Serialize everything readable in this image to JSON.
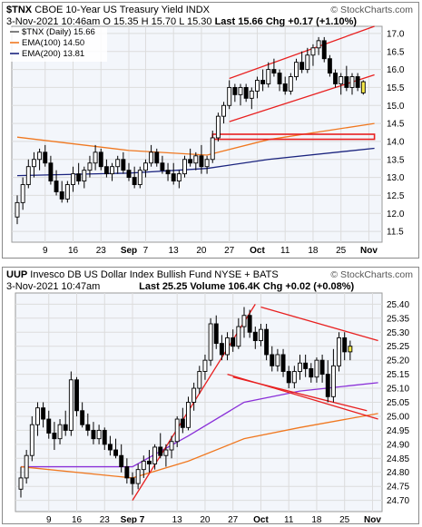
{
  "chart_data": [
    {
      "type": "candlestick",
      "symbol": "$TNX",
      "name": "CBOE 10-Year US Treasury Yield",
      "exchange": "INDX",
      "date": "3-Nov-2021 10:46am",
      "open": "O 15.35",
      "high": "H 15.70",
      "low": "L 15.30",
      "last": "Last 15.66",
      "change": "Chg +0.17 (+1.10%)",
      "legend": [
        {
          "label": "$TNX (Daily) 15.66",
          "color": "#000000"
        },
        {
          "label": "EMA(100) 14.50",
          "color": "#f07820"
        },
        {
          "label": "EMA(200) 13.81",
          "color": "#1a237e"
        }
      ],
      "ylim": [
        11.2,
        17.2
      ],
      "yticks": [
        "11.5",
        "12.0",
        "12.5",
        "13.0",
        "13.5",
        "14.0",
        "14.5",
        "15.0",
        "15.5",
        "16.0",
        "16.5",
        "17.0"
      ],
      "xticks": [
        {
          "label": "9",
          "i": 5
        },
        {
          "label": "16",
          "i": 10
        },
        {
          "label": "23",
          "i": 15
        },
        {
          "label": "Sep",
          "i": 20
        },
        {
          "label": "7",
          "i": 23
        },
        {
          "label": "13",
          "i": 28
        },
        {
          "label": "20",
          "i": 33
        },
        {
          "label": "27",
          "i": 38
        },
        {
          "label": "Oct",
          "i": 43
        },
        {
          "label": "11",
          "i": 48
        },
        {
          "label": "18",
          "i": 53
        },
        {
          "label": "25",
          "i": 58
        },
        {
          "label": "Nov",
          "i": 63
        }
      ],
      "bars": [
        [
          11.9,
          12.5,
          11.7,
          12.3
        ],
        [
          12.3,
          13.0,
          12.1,
          12.8
        ],
        [
          12.8,
          13.5,
          12.7,
          13.3
        ],
        [
          13.3,
          13.7,
          13.0,
          13.5
        ],
        [
          13.5,
          13.8,
          13.2,
          13.7
        ],
        [
          13.7,
          13.9,
          13.3,
          13.4
        ],
        [
          13.4,
          13.6,
          12.8,
          12.9
        ],
        [
          12.9,
          13.2,
          12.5,
          12.6
        ],
        [
          12.6,
          12.9,
          12.3,
          12.4
        ],
        [
          12.4,
          12.9,
          12.3,
          12.8
        ],
        [
          12.8,
          13.3,
          12.6,
          13.1
        ],
        [
          13.1,
          13.4,
          12.8,
          12.9
        ],
        [
          12.9,
          13.3,
          12.7,
          13.2
        ],
        [
          13.2,
          13.6,
          13.0,
          13.4
        ],
        [
          13.4,
          13.9,
          13.2,
          13.7
        ],
        [
          13.7,
          13.8,
          13.2,
          13.3
        ],
        [
          13.3,
          13.5,
          13.0,
          13.1
        ],
        [
          13.1,
          13.4,
          12.9,
          13.3
        ],
        [
          13.3,
          13.6,
          13.1,
          13.5
        ],
        [
          13.5,
          13.7,
          13.1,
          13.2
        ],
        [
          13.2,
          13.4,
          12.9,
          13.0
        ],
        [
          13.0,
          13.3,
          12.7,
          12.8
        ],
        [
          12.8,
          13.3,
          12.7,
          13.2
        ],
        [
          13.2,
          13.5,
          13.0,
          13.4
        ],
        [
          13.4,
          13.9,
          13.3,
          13.7
        ],
        [
          13.7,
          13.8,
          13.3,
          13.4
        ],
        [
          13.4,
          13.6,
          13.1,
          13.2
        ],
        [
          13.2,
          13.4,
          12.9,
          13.1
        ],
        [
          13.1,
          13.4,
          12.8,
          12.9
        ],
        [
          12.9,
          13.2,
          12.7,
          13.1
        ],
        [
          13.1,
          13.6,
          13.0,
          13.5
        ],
        [
          13.5,
          13.8,
          13.3,
          13.4
        ],
        [
          13.4,
          13.7,
          13.2,
          13.6
        ],
        [
          13.6,
          13.9,
          13.1,
          13.3
        ],
        [
          13.3,
          13.6,
          13.1,
          13.5
        ],
        [
          13.5,
          14.3,
          13.4,
          14.1
        ],
        [
          14.1,
          14.8,
          14.0,
          14.7
        ],
        [
          14.7,
          15.1,
          14.5,
          15.0
        ],
        [
          15.0,
          15.7,
          14.9,
          15.5
        ],
        [
          15.5,
          15.6,
          15.1,
          15.3
        ],
        [
          15.3,
          15.6,
          15.0,
          15.5
        ],
        [
          15.5,
          15.6,
          15.1,
          15.2
        ],
        [
          15.2,
          15.5,
          14.9,
          15.4
        ],
        [
          15.4,
          15.8,
          15.2,
          15.7
        ],
        [
          15.7,
          16.0,
          15.4,
          15.6
        ],
        [
          15.6,
          16.2,
          15.5,
          16.0
        ],
        [
          16.0,
          16.3,
          15.8,
          15.9
        ],
        [
          15.9,
          16.0,
          15.4,
          15.6
        ],
        [
          15.6,
          15.8,
          15.3,
          15.4
        ],
        [
          15.4,
          15.9,
          15.3,
          15.8
        ],
        [
          15.8,
          16.3,
          15.7,
          16.2
        ],
        [
          16.2,
          16.5,
          15.9,
          16.0
        ],
        [
          16.0,
          16.6,
          15.9,
          16.4
        ],
        [
          16.4,
          16.7,
          16.1,
          16.6
        ],
        [
          16.6,
          16.9,
          16.4,
          16.8
        ],
        [
          16.8,
          16.9,
          16.2,
          16.3
        ],
        [
          16.3,
          16.4,
          15.8,
          15.9
        ],
        [
          15.9,
          16.0,
          15.5,
          15.6
        ],
        [
          15.6,
          15.9,
          15.3,
          15.8
        ],
        [
          15.8,
          16.1,
          15.4,
          15.5
        ],
        [
          15.5,
          15.9,
          15.3,
          15.8
        ],
        [
          15.8,
          15.9,
          15.4,
          15.5
        ],
        [
          15.35,
          15.7,
          15.3,
          15.66
        ]
      ],
      "ema100": [
        [
          0,
          14.12
        ],
        [
          20,
          13.75
        ],
        [
          34,
          13.62
        ],
        [
          45,
          14.05
        ],
        [
          64,
          14.5
        ]
      ],
      "ema200": [
        [
          0,
          13.05
        ],
        [
          20,
          13.12
        ],
        [
          34,
          13.25
        ],
        [
          45,
          13.5
        ],
        [
          64,
          13.81
        ]
      ],
      "annotations": {
        "channel": [
          [
            [
              38,
              15.75
            ],
            [
              64,
              17.2
            ]
          ],
          [
            [
              38,
              14.55
            ],
            [
              64,
              15.85
            ]
          ]
        ],
        "box": [
          [
            35,
            14.2
          ],
          [
            64,
            14.06
          ]
        ]
      }
    },
    {
      "type": "candlestick",
      "symbol": "UUP",
      "name": "Invesco DB US Dollar Index Bullish Fund",
      "exchange": "NYSE + BATS",
      "date": "3-Nov-2021 10:47am",
      "last": "Last 25.25",
      "volume": "Volume 106.4K",
      "change": "Chg +0.02 (+0.08%)",
      "ylim": [
        24.66,
        25.44
      ],
      "yticks": [
        "24.70",
        "24.75",
        "24.80",
        "24.85",
        "24.90",
        "24.95",
        "25.00",
        "25.05",
        "25.10",
        "25.15",
        "25.20",
        "25.25",
        "25.30",
        "25.35",
        "25.40"
      ],
      "xticks": [
        {
          "label": "9",
          "i": 5
        },
        {
          "label": "16",
          "i": 10
        },
        {
          "label": "23",
          "i": 15
        },
        {
          "label": "Sep 7",
          "i": 20
        },
        {
          "label": "13",
          "i": 28
        },
        {
          "label": "20",
          "i": 33
        },
        {
          "label": "27",
          "i": 38
        },
        {
          "label": "Oct",
          "i": 43
        },
        {
          "label": "11",
          "i": 48
        },
        {
          "label": "18",
          "i": 53
        },
        {
          "label": "25",
          "i": 58
        },
        {
          "label": "Nov",
          "i": 63
        }
      ],
      "bars": [
        [
          24.74,
          24.82,
          24.71,
          24.78
        ],
        [
          24.78,
          24.88,
          24.76,
          24.86
        ],
        [
          24.86,
          25.0,
          24.84,
          24.97
        ],
        [
          24.97,
          25.05,
          24.93,
          25.03
        ],
        [
          25.03,
          25.05,
          24.96,
          24.99
        ],
        [
          24.99,
          25.02,
          24.92,
          24.94
        ],
        [
          24.94,
          24.98,
          24.88,
          24.92
        ],
        [
          24.92,
          24.99,
          24.9,
          24.97
        ],
        [
          24.97,
          25.02,
          24.93,
          24.95
        ],
        [
          24.95,
          25.16,
          24.93,
          25.13
        ],
        [
          25.13,
          25.14,
          25.0,
          25.02
        ],
        [
          25.02,
          25.05,
          24.96,
          24.97
        ],
        [
          24.97,
          25.01,
          24.93,
          24.95
        ],
        [
          24.95,
          24.98,
          24.9,
          24.92
        ],
        [
          24.92,
          24.97,
          24.9,
          24.95
        ],
        [
          24.95,
          24.96,
          24.88,
          24.9
        ],
        [
          24.9,
          24.93,
          24.86,
          24.88
        ],
        [
          24.88,
          24.92,
          24.85,
          24.86
        ],
        [
          24.86,
          24.9,
          24.8,
          24.82
        ],
        [
          24.82,
          24.85,
          24.76,
          24.78
        ],
        [
          24.78,
          24.8,
          24.72,
          24.76
        ],
        [
          24.76,
          24.83,
          24.74,
          24.81
        ],
        [
          24.81,
          24.86,
          24.78,
          24.84
        ],
        [
          24.84,
          24.88,
          24.8,
          24.83
        ],
        [
          24.83,
          24.9,
          24.81,
          24.89
        ],
        [
          24.89,
          24.94,
          24.85,
          24.86
        ],
        [
          24.86,
          24.9,
          24.82,
          24.88
        ],
        [
          24.88,
          24.93,
          24.85,
          24.91
        ],
        [
          24.91,
          25.0,
          24.89,
          24.99
        ],
        [
          24.99,
          25.03,
          24.94,
          24.96
        ],
        [
          24.96,
          25.07,
          24.95,
          25.05
        ],
        [
          25.05,
          25.12,
          25.02,
          25.1
        ],
        [
          25.1,
          25.18,
          25.08,
          25.16
        ],
        [
          25.16,
          25.22,
          25.13,
          25.2
        ],
        [
          25.2,
          25.35,
          25.18,
          25.33
        ],
        [
          25.33,
          25.36,
          25.24,
          25.26
        ],
        [
          25.26,
          25.29,
          25.2,
          25.22
        ],
        [
          25.22,
          25.3,
          25.2,
          25.28
        ],
        [
          25.28,
          25.31,
          25.23,
          25.25
        ],
        [
          25.25,
          25.35,
          25.24,
          25.32
        ],
        [
          25.32,
          25.39,
          25.28,
          25.36
        ],
        [
          25.36,
          25.38,
          25.28,
          25.3
        ],
        [
          25.3,
          25.32,
          25.24,
          25.27
        ],
        [
          25.27,
          25.33,
          25.25,
          25.31
        ],
        [
          25.31,
          25.33,
          25.2,
          25.22
        ],
        [
          25.22,
          25.25,
          25.16,
          25.18
        ],
        [
          25.18,
          25.24,
          25.16,
          25.22
        ],
        [
          25.22,
          25.24,
          25.14,
          25.16
        ],
        [
          25.16,
          25.18,
          25.1,
          25.12
        ],
        [
          25.12,
          25.18,
          25.1,
          25.16
        ],
        [
          25.16,
          25.22,
          25.13,
          25.19
        ],
        [
          25.19,
          25.22,
          25.14,
          25.17
        ],
        [
          25.17,
          25.19,
          25.12,
          25.14
        ],
        [
          25.14,
          25.21,
          25.12,
          25.2
        ],
        [
          25.2,
          25.22,
          25.12,
          25.15
        ],
        [
          25.15,
          25.2,
          25.05,
          25.07
        ],
        [
          25.07,
          25.24,
          25.05,
          25.18
        ],
        [
          25.18,
          25.3,
          25.16,
          25.28
        ],
        [
          25.28,
          25.3,
          25.2,
          25.23
        ],
        [
          25.23,
          25.27,
          25.2,
          25.25
        ]
      ],
      "ema50": [
        [
          0,
          24.82
        ],
        [
          20,
          24.82
        ],
        [
          30,
          24.93
        ],
        [
          40,
          25.05
        ],
        [
          50,
          25.09
        ],
        [
          64,
          25.12
        ]
      ],
      "ema100": [
        [
          0,
          24.82
        ],
        [
          20,
          24.78
        ],
        [
          30,
          24.84
        ],
        [
          40,
          24.92
        ],
        [
          50,
          24.96
        ],
        [
          64,
          25.01
        ]
      ],
      "annotations": {
        "uptrend": [
          [
            20,
            24.7
          ],
          [
            42,
            25.4
          ]
        ],
        "wedge_upper": [
          [
            43,
            25.39
          ],
          [
            64,
            25.27
          ]
        ],
        "wedge_lower": [
          [
            37,
            25.15
          ],
          [
            64,
            24.99
          ]
        ],
        "wedge_top_extra": [
          [
            38,
            25.14
          ],
          [
            62,
            25.02
          ]
        ]
      }
    }
  ],
  "watermark": "© StockCharts.com"
}
